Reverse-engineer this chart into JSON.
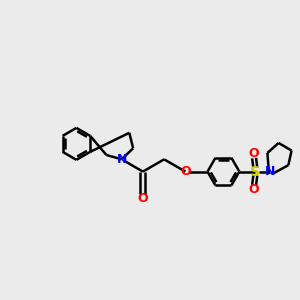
{
  "background_color": "#ebebeb",
  "bond_color": "#000000",
  "N_color": "#0000ff",
  "O_color": "#ff0000",
  "S_color": "#cccc00",
  "line_width": 1.8,
  "figsize": [
    3.0,
    3.0
  ],
  "dpi": 100,
  "xlim": [
    -1.5,
    10.5
  ],
  "ylim": [
    -1.0,
    7.5
  ]
}
